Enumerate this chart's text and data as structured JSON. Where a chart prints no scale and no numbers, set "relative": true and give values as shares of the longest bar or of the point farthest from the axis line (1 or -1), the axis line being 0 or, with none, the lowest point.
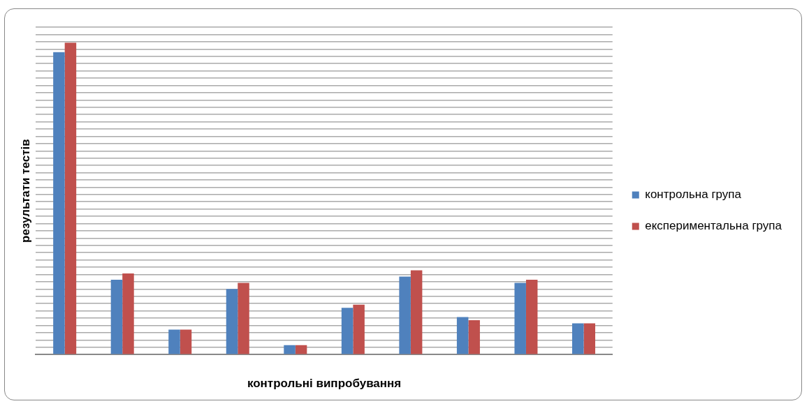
{
  "chart_data": {
    "type": "bar",
    "relative": true,
    "xlabel": "контрольні випробування",
    "ylabel": "результати тестів",
    "categories": [
      null,
      null,
      null,
      null,
      null,
      null,
      null,
      null,
      null,
      null
    ],
    "series": [
      {
        "name": "контрольна група",
        "color": "#4f81bd",
        "values": [
          0.97,
          0.24,
          0.08,
          0.21,
          0.03,
          0.15,
          0.25,
          0.12,
          0.23,
          0.1
        ]
      },
      {
        "name": "експериментальна група",
        "color": "#c0504d",
        "values": [
          1,
          0.26,
          0.08,
          0.23,
          0.03,
          0.16,
          0.27,
          0.11,
          0.24,
          0.1
        ]
      }
    ],
    "grid": "y",
    "legend": "right"
  }
}
